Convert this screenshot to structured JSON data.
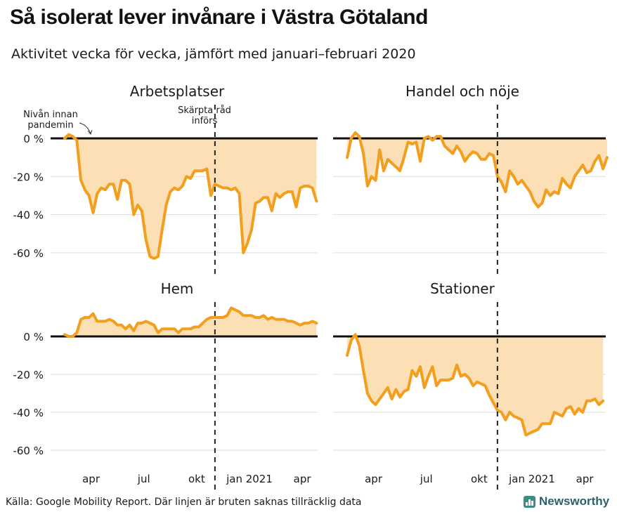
{
  "title": "Så isolerat lever invånare i Västra Götaland",
  "subtitle": "Aktivitet vecka för vecka, jämfört med januari–februari 2020",
  "source": "Källa: Google Mobility Report. Där linjen är bruten saknas tillräcklig data",
  "brand": "Newsworthy",
  "colors": {
    "line": "#F29E1F",
    "fill": "#FCDFB4",
    "zero": "#111111",
    "grid": "#dddddd"
  },
  "icons": {
    "brand": "bar-chart-icon"
  },
  "annotations": {
    "baseline": "Nivån innan pandemin",
    "baseline_lines": [
      "Nivån innan",
      "pandemin"
    ],
    "policy": "Skärpta råd införs",
    "policy_lines": [
      "Skärpta råd",
      "införs"
    ]
  },
  "chart_data": {
    "type": "line",
    "x_unit": "weeks since 2020-02-17",
    "vline_x": 37,
    "x_ticks": [
      {
        "label": "apr",
        "x": 6.5
      },
      {
        "label": "jul",
        "x": 19.5
      },
      {
        "label": "okt",
        "x": 32.5
      },
      {
        "label": "jan 2021",
        "x": 45.5
      },
      {
        "label": "apr",
        "x": 58.5
      }
    ],
    "y_ticks": [
      0,
      -20,
      -40,
      -60
    ],
    "y_tick_labels": [
      "0 %",
      "-20 %",
      "-40 %",
      "-60 %"
    ],
    "panels": [
      {
        "name": "Arbetsplatser",
        "ylim": [
          -70,
          5
        ],
        "values": [
          0,
          2,
          1,
          -1,
          -22,
          -27,
          -30,
          -39,
          -29,
          -26,
          -27,
          -24,
          -24,
          -32,
          -22,
          -22,
          -24,
          -40,
          -35,
          -38,
          -53,
          -62,
          -63,
          -62,
          -48,
          -35,
          -28,
          -26,
          -27,
          -25,
          -20,
          -21,
          -17,
          -17,
          -17,
          -16,
          -30,
          -24,
          -25,
          -26,
          -26,
          -27,
          -26,
          -29,
          -60,
          -55,
          -48,
          -34,
          -33,
          -31,
          -31,
          -38,
          -29,
          -31,
          -29,
          -28,
          -28,
          -36,
          -26,
          -25,
          -25,
          -26,
          -33
        ]
      },
      {
        "name": "Handel och nöje",
        "ylim": [
          -40,
          5
        ],
        "values": [
          -10,
          0,
          3,
          1,
          -8,
          -25,
          -20,
          -22,
          -6,
          -17,
          -11,
          -13,
          -15,
          -17,
          -10,
          -2,
          -3,
          -2,
          -12,
          0,
          1,
          -1,
          1,
          1,
          -4,
          -6,
          -8,
          -4,
          -7,
          -12,
          -9,
          -7,
          -8,
          -11,
          -11,
          -8,
          -9,
          -20,
          -23,
          -28,
          -17,
          -20,
          -24,
          -22,
          -25,
          -28,
          -33,
          -36,
          -34,
          -27,
          -30,
          -28,
          -29,
          -21,
          -24,
          -26,
          -20,
          -17,
          -14,
          -18,
          -17,
          -12,
          -9,
          -16,
          -10
        ]
      },
      {
        "name": "Hem",
        "ylim": [
          -70,
          15
        ],
        "values": [
          1,
          0,
          0,
          2,
          9,
          10,
          10,
          12,
          8,
          8,
          8,
          9,
          8,
          6,
          6,
          4,
          6,
          3,
          7,
          7,
          8,
          7,
          6,
          2,
          4,
          4,
          4,
          4,
          2,
          4,
          4,
          4,
          5,
          5,
          7,
          9,
          10,
          10,
          10,
          10,
          11,
          15,
          14,
          13,
          11,
          11,
          11,
          10,
          10,
          11,
          9,
          10,
          9,
          9,
          9,
          8,
          8,
          7,
          6,
          7,
          7,
          8,
          7
        ]
      },
      {
        "name": "Stationer",
        "ylim": [
          -60,
          5
        ],
        "values": [
          -10,
          -2,
          1,
          -5,
          -18,
          -30,
          -34,
          -36,
          -33,
          -30,
          -27,
          -33,
          -28,
          -32,
          -29,
          -28,
          -18,
          -21,
          -16,
          -27,
          -21,
          -16,
          -26,
          -23,
          -23,
          -23,
          -22,
          -15,
          -21,
          -20,
          -22,
          -26,
          -24,
          -25,
          -26,
          -31,
          -35,
          -39,
          -40,
          -44,
          -40,
          -42,
          -43,
          -44,
          -52,
          -51,
          -50,
          -49,
          -46,
          -46,
          -46,
          -40,
          -41,
          -42,
          -38,
          -37,
          -41,
          -38,
          -40,
          -34,
          -34,
          -33,
          -36,
          -34
        ]
      }
    ]
  }
}
